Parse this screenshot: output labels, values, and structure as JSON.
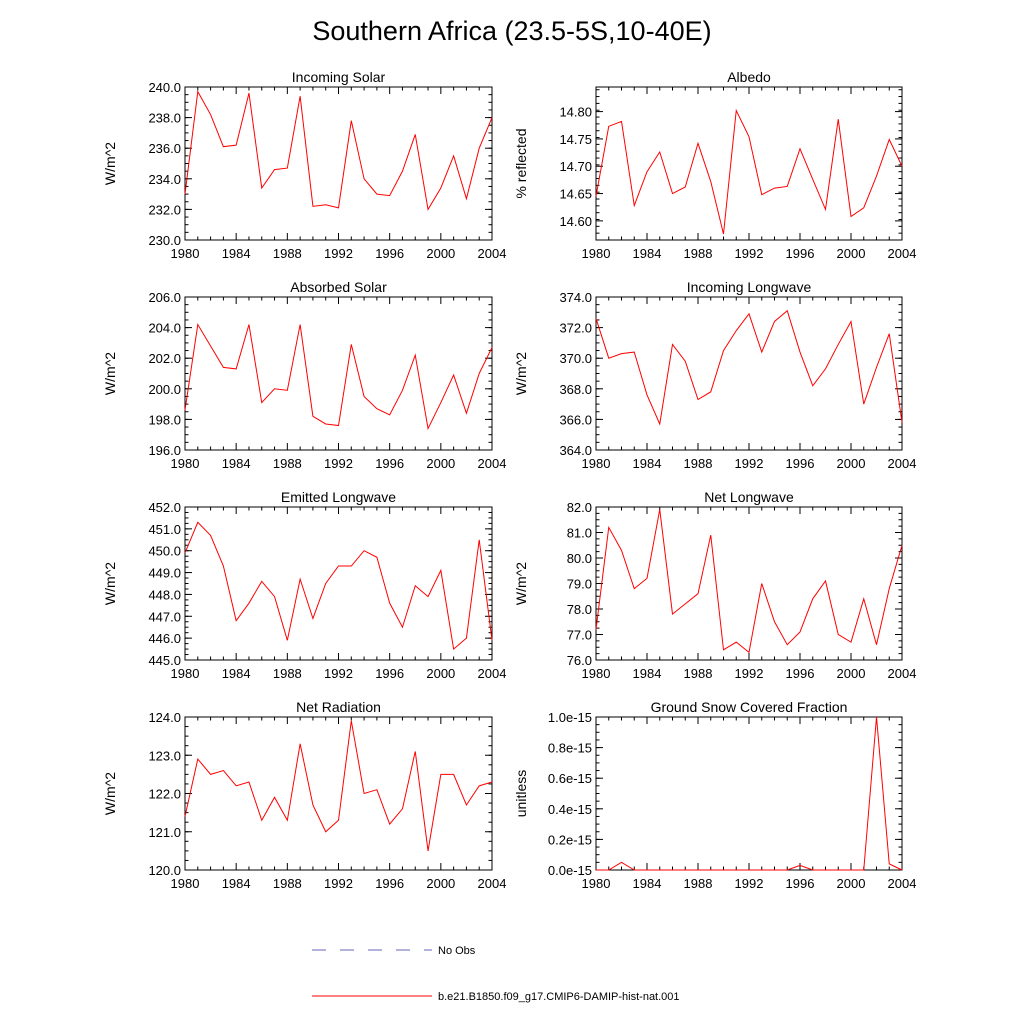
{
  "figure": {
    "title": "Southern Africa (23.5-5S,10-40E)"
  },
  "legend": {
    "entries": [
      {
        "label": "No Obs",
        "color": "#6666bb",
        "style": "dashed"
      },
      {
        "label": "b.e21.B1850.f09_g17.CMIP6-DAMIP-hist-nat.001",
        "color": "#ff0000",
        "style": "solid"
      }
    ]
  },
  "chart_data": [
    {
      "type": "line",
      "title": "Incoming Solar",
      "xlabel": "",
      "ylabel": "W/m^2",
      "xlim": [
        1980,
        2004
      ],
      "ylim": [
        230.0,
        240.0
      ],
      "xticks": [
        1980,
        1984,
        1988,
        1992,
        1996,
        2000,
        2004
      ],
      "xtick_labels": [
        "1980",
        "1984",
        "1988",
        "1992",
        "1996",
        "2000",
        "2004"
      ],
      "yticks": [
        230,
        232,
        234,
        236,
        238,
        240
      ],
      "ytick_labels": [
        "230.0",
        "232.0",
        "234.0",
        "236.0",
        "238.0",
        "240.0"
      ],
      "x": [
        1980,
        1981,
        1982,
        1983,
        1984,
        1985,
        1986,
        1987,
        1988,
        1989,
        1990,
        1991,
        1992,
        1993,
        1994,
        1995,
        1996,
        1997,
        1998,
        1999,
        2000,
        2001,
        2002,
        2003,
        2004
      ],
      "series": [
        {
          "color": "#ff0000",
          "values": [
            233.0,
            239.7,
            238.2,
            236.1,
            236.2,
            239.6,
            233.4,
            234.6,
            234.7,
            239.4,
            232.2,
            232.3,
            232.1,
            237.8,
            234.0,
            233.0,
            232.9,
            234.5,
            236.9,
            232.0,
            233.4,
            235.5,
            232.7,
            236.0,
            238.0
          ]
        }
      ]
    },
    {
      "type": "line",
      "title": "Albedo",
      "xlabel": "",
      "ylabel": "% reflected",
      "xlim": [
        1980,
        2004
      ],
      "ylim": [
        14.565,
        14.845
      ],
      "xticks": [
        1980,
        1984,
        1988,
        1992,
        1996,
        2000,
        2004
      ],
      "xtick_labels": [
        "1980",
        "1984",
        "1988",
        "1992",
        "1996",
        "2000",
        "2004"
      ],
      "yticks": [
        14.6,
        14.65,
        14.7,
        14.75,
        14.8
      ],
      "ytick_labels": [
        "14.60",
        "14.65",
        "14.70",
        "14.75",
        "14.80"
      ],
      "x": [
        1980,
        1981,
        1982,
        1983,
        1984,
        1985,
        1986,
        1987,
        1988,
        1989,
        1990,
        1991,
        1992,
        1993,
        1994,
        1995,
        1996,
        1997,
        1998,
        1999,
        2000,
        2001,
        2002,
        2003,
        2004
      ],
      "series": [
        {
          "color": "#ff0000",
          "values": [
            14.645,
            14.773,
            14.782,
            14.628,
            14.69,
            14.726,
            14.65,
            14.662,
            14.742,
            14.672,
            14.576,
            14.802,
            14.754,
            14.648,
            14.66,
            14.663,
            14.732,
            14.676,
            14.621,
            14.786,
            14.608,
            14.624,
            14.682,
            14.749,
            14.7
          ]
        }
      ]
    },
    {
      "type": "line",
      "title": "Absorbed Solar",
      "xlabel": "",
      "ylabel": "W/m^2",
      "xlim": [
        1980,
        2004
      ],
      "ylim": [
        196.0,
        206.0
      ],
      "xticks": [
        1980,
        1984,
        1988,
        1992,
        1996,
        2000,
        2004
      ],
      "xtick_labels": [
        "1980",
        "1984",
        "1988",
        "1992",
        "1996",
        "2000",
        "2004"
      ],
      "yticks": [
        196,
        198,
        200,
        202,
        204,
        206
      ],
      "ytick_labels": [
        "196.0",
        "198.0",
        "200.0",
        "202.0",
        "204.0",
        "206.0"
      ],
      "x": [
        1980,
        1981,
        1982,
        1983,
        1984,
        1985,
        1986,
        1987,
        1988,
        1989,
        1990,
        1991,
        1992,
        1993,
        1994,
        1995,
        1996,
        1997,
        1998,
        1999,
        2000,
        2001,
        2002,
        2003,
        2004
      ],
      "series": [
        {
          "color": "#ff0000",
          "values": [
            198.6,
            204.2,
            202.8,
            201.4,
            201.3,
            204.2,
            199.1,
            200.0,
            199.9,
            204.2,
            198.2,
            197.7,
            197.6,
            202.9,
            199.5,
            198.7,
            198.3,
            199.9,
            202.2,
            197.4,
            199.1,
            200.9,
            198.4,
            201.0,
            202.7
          ]
        }
      ]
    },
    {
      "type": "line",
      "title": "Incoming Longwave",
      "xlabel": "",
      "ylabel": "W/m^2",
      "xlim": [
        1980,
        2004
      ],
      "ylim": [
        364.0,
        374.0
      ],
      "xticks": [
        1980,
        1984,
        1988,
        1992,
        1996,
        2000,
        2004
      ],
      "xtick_labels": [
        "1980",
        "1984",
        "1988",
        "1992",
        "1996",
        "2000",
        "2004"
      ],
      "yticks": [
        364,
        366,
        368,
        370,
        372,
        374
      ],
      "ytick_labels": [
        "364.0",
        "366.0",
        "368.0",
        "370.0",
        "372.0",
        "374.0"
      ],
      "x": [
        1980,
        1981,
        1982,
        1983,
        1984,
        1985,
        1986,
        1987,
        1988,
        1989,
        1990,
        1991,
        1992,
        1993,
        1994,
        1995,
        1996,
        1997,
        1998,
        1999,
        2000,
        2001,
        2002,
        2003,
        2004
      ],
      "series": [
        {
          "color": "#ff0000",
          "values": [
            372.6,
            370.0,
            370.3,
            370.4,
            367.6,
            365.7,
            370.9,
            369.8,
            367.3,
            367.8,
            370.5,
            371.8,
            372.9,
            370.4,
            372.4,
            373.1,
            370.4,
            368.2,
            369.3,
            370.9,
            372.4,
            367.0,
            369.4,
            371.6,
            365.8
          ]
        }
      ]
    },
    {
      "type": "line",
      "title": "Emitted Longwave",
      "xlabel": "",
      "ylabel": "W/m^2",
      "xlim": [
        1980,
        2004
      ],
      "ylim": [
        445.0,
        452.0
      ],
      "xticks": [
        1980,
        1984,
        1988,
        1992,
        1996,
        2000,
        2004
      ],
      "xtick_labels": [
        "1980",
        "1984",
        "1988",
        "1992",
        "1996",
        "2000",
        "2004"
      ],
      "yticks": [
        445,
        446,
        447,
        448,
        449,
        450,
        451,
        452
      ],
      "ytick_labels": [
        "445.0",
        "446.0",
        "447.0",
        "448.0",
        "449.0",
        "450.0",
        "451.0",
        "452.0"
      ],
      "x": [
        1980,
        1981,
        1982,
        1983,
        1984,
        1985,
        1986,
        1987,
        1988,
        1989,
        1990,
        1991,
        1992,
        1993,
        1994,
        1995,
        1996,
        1997,
        1998,
        1999,
        2000,
        2001,
        2002,
        2003,
        2004
      ],
      "series": [
        {
          "color": "#ff0000",
          "values": [
            449.9,
            451.3,
            450.7,
            449.3,
            446.8,
            447.6,
            448.6,
            447.9,
            445.9,
            448.7,
            446.9,
            448.5,
            449.3,
            449.3,
            450.0,
            449.7,
            447.6,
            446.5,
            448.4,
            447.9,
            449.1,
            445.5,
            446.0,
            450.5,
            445.9
          ]
        }
      ]
    },
    {
      "type": "line",
      "title": "Net Longwave",
      "xlabel": "",
      "ylabel": "W/m^2",
      "xlim": [
        1980,
        2004
      ],
      "ylim": [
        76.0,
        82.0
      ],
      "xticks": [
        1980,
        1984,
        1988,
        1992,
        1996,
        2000,
        2004
      ],
      "xtick_labels": [
        "1980",
        "1984",
        "1988",
        "1992",
        "1996",
        "2000",
        "2004"
      ],
      "yticks": [
        76,
        77,
        78,
        79,
        80,
        81,
        82
      ],
      "ytick_labels": [
        "76.0",
        "77.0",
        "78.0",
        "79.0",
        "80.0",
        "81.0",
        "82.0"
      ],
      "x": [
        1980,
        1981,
        1982,
        1983,
        1984,
        1985,
        1986,
        1987,
        1988,
        1989,
        1990,
        1991,
        1992,
        1993,
        1994,
        1995,
        1996,
        1997,
        1998,
        1999,
        2000,
        2001,
        2002,
        2003,
        2004
      ],
      "series": [
        {
          "color": "#ff0000",
          "values": [
            77.2,
            81.2,
            80.3,
            78.8,
            79.2,
            81.9,
            77.8,
            78.2,
            78.6,
            80.9,
            76.4,
            76.7,
            76.3,
            79.0,
            77.5,
            76.6,
            77.1,
            78.4,
            79.1,
            77.0,
            76.7,
            78.4,
            76.6,
            78.8,
            80.5
          ]
        }
      ]
    },
    {
      "type": "line",
      "title": "Net Radiation",
      "xlabel": "",
      "ylabel": "W/m^2",
      "xlim": [
        1980,
        2004
      ],
      "ylim": [
        120.0,
        124.0
      ],
      "xticks": [
        1980,
        1984,
        1988,
        1992,
        1996,
        2000,
        2004
      ],
      "xtick_labels": [
        "1980",
        "1984",
        "1988",
        "1992",
        "1996",
        "2000",
        "2004"
      ],
      "yticks": [
        120,
        121,
        122,
        123,
        124
      ],
      "ytick_labels": [
        "120.0",
        "121.0",
        "122.0",
        "123.0",
        "124.0"
      ],
      "x": [
        1980,
        1981,
        1982,
        1983,
        1984,
        1985,
        1986,
        1987,
        1988,
        1989,
        1990,
        1991,
        1992,
        1993,
        1994,
        1995,
        1996,
        1997,
        1998,
        1999,
        2000,
        2001,
        2002,
        2003,
        2004
      ],
      "series": [
        {
          "color": "#ff0000",
          "values": [
            121.4,
            122.9,
            122.5,
            122.6,
            122.2,
            122.3,
            121.3,
            121.9,
            121.3,
            123.3,
            121.7,
            121.0,
            121.3,
            123.9,
            122.0,
            122.1,
            121.2,
            121.6,
            123.1,
            120.5,
            122.5,
            122.5,
            121.7,
            122.2,
            122.3
          ]
        }
      ]
    },
    {
      "type": "line",
      "title": "Ground Snow Covered Fraction",
      "xlabel": "",
      "ylabel": "unitless",
      "xlim": [
        1980,
        2004
      ],
      "ylim": [
        0,
        1e-15
      ],
      "xticks": [
        1980,
        1984,
        1988,
        1992,
        1996,
        2000,
        2004
      ],
      "xtick_labels": [
        "1980",
        "1984",
        "1988",
        "1992",
        "1996",
        "2000",
        "2004"
      ],
      "yticks": [
        0,
        2e-16,
        4e-16,
        6e-16,
        8e-16,
        1e-15
      ],
      "ytick_labels": [
        "0.0e-15",
        "0.2e-15",
        "0.4e-15",
        "0.6e-15",
        "0.8e-15",
        "1.0e-15"
      ],
      "x": [
        1980,
        1981,
        1982,
        1983,
        1984,
        1985,
        1986,
        1987,
        1988,
        1989,
        1990,
        1991,
        1992,
        1993,
        1994,
        1995,
        1996,
        1997,
        1998,
        1999,
        2000,
        2001,
        2002,
        2003,
        2004
      ],
      "series": [
        {
          "color": "#ff0000",
          "values": [
            0,
            0,
            5e-17,
            0,
            0,
            0,
            0,
            0,
            0,
            0,
            0,
            0,
            0,
            0,
            0,
            0,
            3e-17,
            0,
            0,
            0,
            0,
            0,
            1e-15,
            4e-17,
            0
          ]
        }
      ]
    }
  ]
}
